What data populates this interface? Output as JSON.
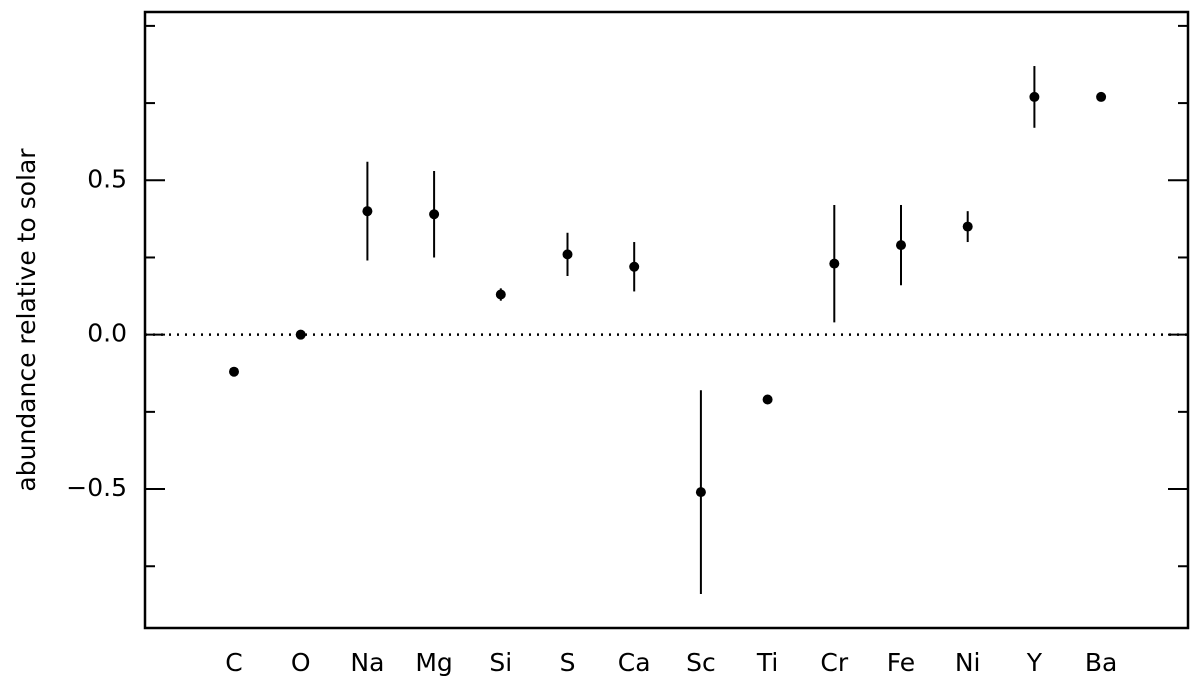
{
  "chart_data": {
    "type": "errorbar",
    "y_label": "abundance relative to solar",
    "categories": [
      "C",
      "O",
      "Na",
      "Mg",
      "Si",
      "S",
      "Ca",
      "Sc",
      "Ti",
      "Cr",
      "Fe",
      "Ni",
      "Y",
      "Ba"
    ],
    "values": [
      -0.12,
      0.0,
      0.4,
      0.39,
      0.13,
      0.26,
      0.22,
      -0.51,
      -0.21,
      0.23,
      0.29,
      0.35,
      0.77,
      0.77
    ],
    "errors": [
      null,
      null,
      0.16,
      0.14,
      0.02,
      0.07,
      0.08,
      0.33,
      null,
      0.19,
      0.13,
      0.05,
      0.1,
      null
    ],
    "color": "#000000",
    "ylim": [
      -0.95,
      1.045
    ],
    "yticks": [
      {
        "value": -0.5,
        "label": "−0.5"
      },
      {
        "value": 0,
        "label": "0.0"
      },
      0.5
    ],
    "minor_yticks": [
      -0.75,
      -0.25,
      0.25,
      0.75,
      1.0
    ],
    "reference_line": 0
  }
}
